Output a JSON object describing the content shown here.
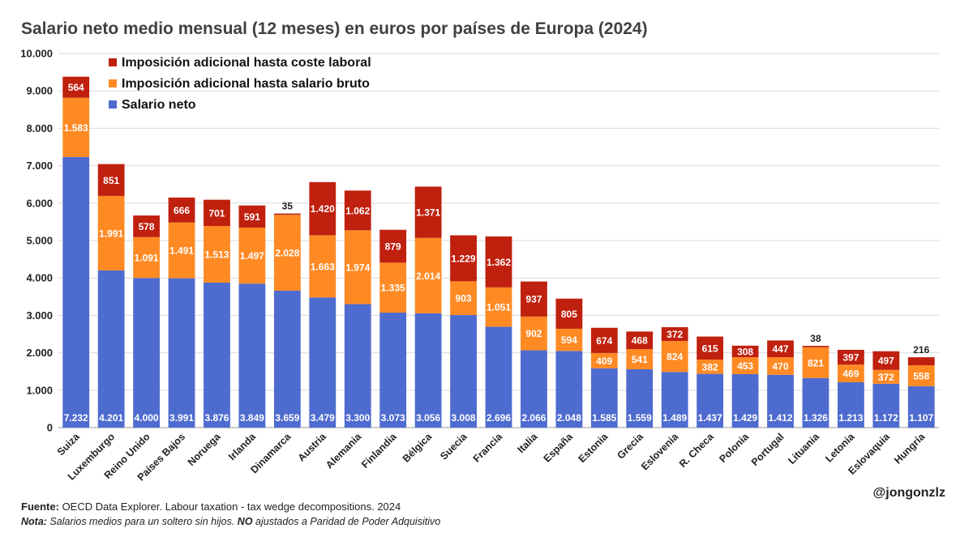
{
  "chart_data": {
    "type": "bar",
    "stacked": true,
    "title": "Salario neto medio mensual (12 meses) en euros por países de Europa (2024)",
    "categories": [
      "Suiza",
      "Luxemburgo",
      "Reino Unido",
      "Países Bajos",
      "Noruega",
      "Irlanda",
      "Dinamarca",
      "Austria",
      "Alemania",
      "Finlandia",
      "Bélgica",
      "Suecia",
      "Francia",
      "Italia",
      "España",
      "Estonia",
      "Grecia",
      "Eslovenia",
      "R. Checa",
      "Polonia",
      "Portugal",
      "Lituania",
      "Letonia",
      "Eslovaquia",
      "Hungría"
    ],
    "series": [
      {
        "name": "Salario neto",
        "color": "#4E6BCF",
        "values": [
          7232,
          4201,
          4000,
          3991,
          3876,
          3849,
          3659,
          3479,
          3300,
          3073,
          3056,
          3008,
          2696,
          2066,
          2048,
          1585,
          1559,
          1489,
          1437,
          1429,
          1412,
          1326,
          1213,
          1172,
          1107
        ]
      },
      {
        "name": "Imposición adicional hasta salario bruto",
        "color": "#FF8A24",
        "values": [
          1583,
          1991,
          1091,
          1491,
          1513,
          1497,
          2028,
          1663,
          1974,
          1335,
          2014,
          903,
          1051,
          902,
          594,
          409,
          541,
          824,
          382,
          453,
          470,
          821,
          469,
          372,
          558
        ]
      },
      {
        "name": "Imposición adicional hasta coste laboral",
        "color": "#C0200E",
        "values": [
          564,
          851,
          578,
          666,
          701,
          591,
          35,
          1420,
          1062,
          879,
          1371,
          1229,
          1362,
          937,
          805,
          674,
          468,
          372,
          615,
          308,
          447,
          38,
          397,
          497,
          216
        ]
      }
    ],
    "legend_order": [
      "Imposición adicional hasta coste laboral",
      "Imposición adicional hasta salario bruto",
      "Salario neto"
    ],
    "legend_position": "top-left",
    "y_ticks": [
      "0",
      "1.000",
      "2.000",
      "3.000",
      "4.000",
      "5.000",
      "6.000",
      "7.000",
      "8.000",
      "9.000",
      "10.000"
    ],
    "ylim": [
      0,
      10000
    ],
    "xlabel": "",
    "ylabel": "",
    "grid": true
  },
  "footer": {
    "source_label": "Fuente:",
    "source_text": " OECD Data Explorer. Labour taxation - tax wedge decompositions. 2024",
    "note_label": "Nota:",
    "note_text_1": " Salarios medios para un soltero sin hijos. ",
    "note_emph": "NO",
    "note_text_2": " ajustados a Paridad de Poder Adquisitivo",
    "handle": "@jongonzlz"
  }
}
